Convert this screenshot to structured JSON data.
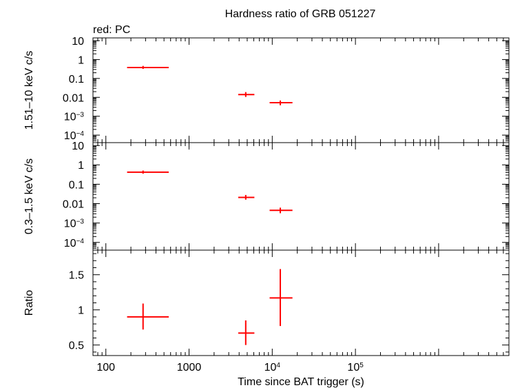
{
  "title": "Hardness ratio of GRB 051227",
  "subtitle": "red: PC",
  "xlabel": "Time since BAT trigger (s)",
  "colors": {
    "series": "#ff0000",
    "axes": "#000000",
    "background": "#ffffff"
  },
  "chart_data": [
    {
      "type": "scatter",
      "panel": "top",
      "ylabel": "1.51–10 keV c/s",
      "xscale": "log",
      "yscale": "log",
      "xlim": [
        70,
        7000000
      ],
      "ylim": [
        4e-05,
        14
      ],
      "grid": false,
      "ytick_labels": [
        {
          "v": 10,
          "html": "10"
        },
        {
          "v": 1,
          "html": "1"
        },
        {
          "v": 0.1,
          "html": "0.1"
        },
        {
          "v": 0.01,
          "html": "0.01"
        },
        {
          "v": 0.001,
          "html": "10<tspan baseline-shift=\"super\" font-size=\"10\">−3</tspan>"
        },
        {
          "v": 0.0001,
          "html": "10<tspan baseline-shift=\"super\" font-size=\"10\">−4</tspan>"
        }
      ],
      "series": [
        {
          "color": "#ff0000",
          "points": [
            {
              "x": 280,
              "xlo": 180,
              "xhi": 570,
              "y": 0.38,
              "ylo": 0.32,
              "yhi": 0.46
            },
            {
              "x": 4800,
              "xlo": 3900,
              "xhi": 6100,
              "y": 0.014,
              "ylo": 0.0105,
              "yhi": 0.019
            },
            {
              "x": 12500,
              "xlo": 9300,
              "xhi": 17500,
              "y": 0.0052,
              "ylo": 0.0038,
              "yhi": 0.0068
            }
          ]
        }
      ]
    },
    {
      "type": "scatter",
      "panel": "middle",
      "ylabel": "0.3–1.5 keV c/s",
      "xscale": "log",
      "yscale": "log",
      "xlim": [
        70,
        7000000
      ],
      "ylim": [
        4e-05,
        14
      ],
      "grid": false,
      "ytick_labels": [
        {
          "v": 10,
          "html": "10"
        },
        {
          "v": 1,
          "html": "1"
        },
        {
          "v": 0.1,
          "html": "0.1"
        },
        {
          "v": 0.01,
          "html": "0.01"
        },
        {
          "v": 0.001,
          "html": "10<tspan baseline-shift=\"super\" font-size=\"10\">−3</tspan>"
        },
        {
          "v": 0.0001,
          "html": "10<tspan baseline-shift=\"super\" font-size=\"10\">−4</tspan>"
        }
      ],
      "series": [
        {
          "color": "#ff0000",
          "points": [
            {
              "x": 280,
              "xlo": 180,
              "xhi": 570,
              "y": 0.42,
              "ylo": 0.35,
              "yhi": 0.51
            },
            {
              "x": 4800,
              "xlo": 3900,
              "xhi": 6100,
              "y": 0.021,
              "ylo": 0.016,
              "yhi": 0.028
            },
            {
              "x": 12500,
              "xlo": 9300,
              "xhi": 17500,
              "y": 0.0045,
              "ylo": 0.0032,
              "yhi": 0.0062
            }
          ]
        }
      ]
    },
    {
      "type": "scatter",
      "panel": "bottom",
      "ylabel": "Ratio",
      "xscale": "log",
      "yscale": "linear",
      "xlim": [
        70,
        7000000
      ],
      "ylim": [
        0.35,
        1.85
      ],
      "grid": false,
      "ytick_labels": [
        {
          "v": 1.5,
          "html": "1.5"
        },
        {
          "v": 1,
          "html": "1"
        },
        {
          "v": 0.5,
          "html": "0.5"
        }
      ],
      "series": [
        {
          "color": "#ff0000",
          "points": [
            {
              "x": 280,
              "xlo": 180,
              "xhi": 570,
              "y": 0.9,
              "ylo": 0.72,
              "yhi": 1.09
            },
            {
              "x": 4800,
              "xlo": 3900,
              "xhi": 6100,
              "y": 0.67,
              "ylo": 0.5,
              "yhi": 0.85
            },
            {
              "x": 12500,
              "xlo": 9300,
              "xhi": 17500,
              "y": 1.17,
              "ylo": 0.77,
              "yhi": 1.58
            }
          ]
        }
      ]
    }
  ],
  "xtick_labels": [
    {
      "v": 100,
      "html": "100"
    },
    {
      "v": 1000,
      "html": "1000"
    },
    {
      "v": 10000,
      "html": "10<tspan baseline-shift=\"super\" font-size=\"10\">4</tspan>"
    },
    {
      "v": 100000,
      "html": "10<tspan baseline-shift=\"super\" font-size=\"10\">5</tspan>"
    }
  ]
}
